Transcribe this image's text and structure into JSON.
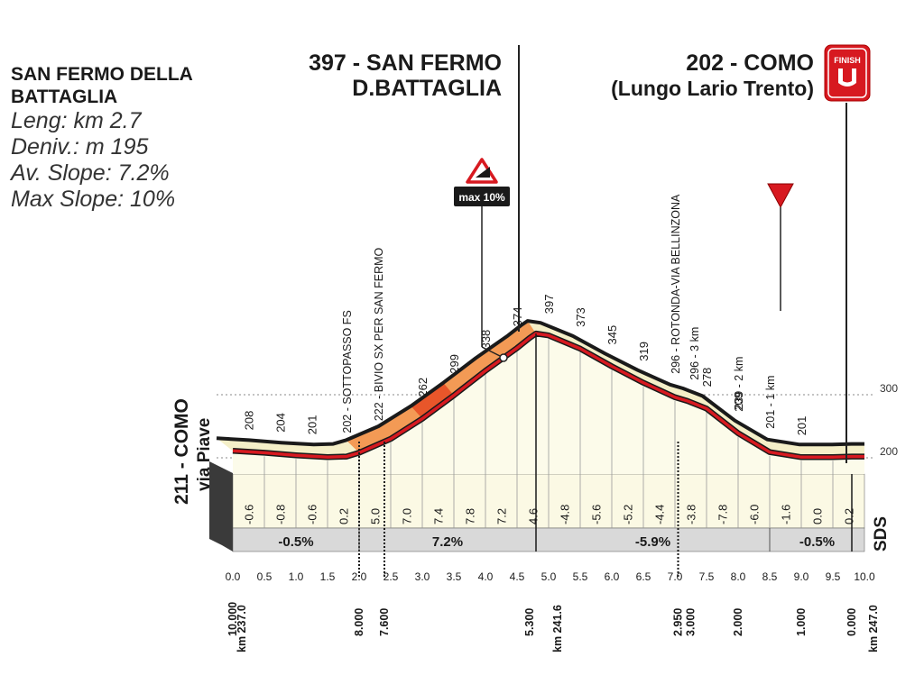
{
  "info": {
    "climb_name": "SAN FERMO DELLA BATTAGLIA",
    "length": "Leng: km 2.7",
    "elevation_gain": "Deniv.: m 195",
    "avg_slope": "Av. Slope: 7.2%",
    "max_slope": "Max Slope:  10%"
  },
  "summit": {
    "line1": "397 - SAN FERMO",
    "line2": "D.BATTAGLIA"
  },
  "finish": {
    "line1": "202 - COMO",
    "line2": "(Lungo Lario Trento)",
    "badge": "FINISH",
    "icon": "finish-flag-icon"
  },
  "start": {
    "line1": "211 - COMO",
    "line2": "via Piave"
  },
  "max_marker": {
    "label": "max 10%",
    "icon": "steep-slope-icon"
  },
  "last_km_marker": {
    "icon": "red-triangle-icon"
  },
  "logo": "SDS",
  "chart_data": {
    "type": "area",
    "x_unit": "km",
    "xlim": [
      0,
      10
    ],
    "ylim": [
      170,
      400
    ],
    "x_ticks": [
      "0.0",
      "0.5",
      "1.0",
      "1.5",
      "2.0",
      "2.5",
      "3.0",
      "3.5",
      "4.0",
      "4.5",
      "5.0",
      "5.5",
      "6.0",
      "6.5",
      "7.0",
      "7.5",
      "8.0",
      "8.5",
      "9.0",
      "9.5",
      "10.0"
    ],
    "y_reference": [
      {
        "value": 300,
        "label": "300"
      },
      {
        "value": 200,
        "label": "200"
      }
    ],
    "profile": [
      {
        "x": 0,
        "y": 211
      },
      {
        "x": 0.5,
        "y": 208
      },
      {
        "x": 1.0,
        "y": 204
      },
      {
        "x": 1.5,
        "y": 201
      },
      {
        "x": 1.8,
        "y": 202
      },
      {
        "x": 2.0,
        "y": 208
      },
      {
        "x": 2.5,
        "y": 230
      },
      {
        "x": 3.0,
        "y": 262
      },
      {
        "x": 3.5,
        "y": 299
      },
      {
        "x": 4.0,
        "y": 338
      },
      {
        "x": 4.5,
        "y": 374
      },
      {
        "x": 4.7,
        "y": 390
      },
      {
        "x": 4.8,
        "y": 397
      },
      {
        "x": 5.0,
        "y": 394
      },
      {
        "x": 5.5,
        "y": 373
      },
      {
        "x": 6.0,
        "y": 345
      },
      {
        "x": 6.5,
        "y": 319
      },
      {
        "x": 7.0,
        "y": 296
      },
      {
        "x": 7.2,
        "y": 290
      },
      {
        "x": 7.5,
        "y": 278
      },
      {
        "x": 8.0,
        "y": 239
      },
      {
        "x": 8.5,
        "y": 209
      },
      {
        "x": 9.0,
        "y": 201
      },
      {
        "x": 9.5,
        "y": 201
      },
      {
        "x": 9.8,
        "y": 202
      },
      {
        "x": 10.0,
        "y": 202
      }
    ],
    "steep_section": [
      3.3,
      4.8
    ],
    "altitude_labels": [
      {
        "x": 0.25,
        "label": "208"
      },
      {
        "x": 0.75,
        "label": "204"
      },
      {
        "x": 1.25,
        "label": "201"
      },
      {
        "x": 3.0,
        "label": "262"
      },
      {
        "x": 3.5,
        "label": "299"
      },
      {
        "x": 4.0,
        "label": "338"
      },
      {
        "x": 4.5,
        "label": "374"
      },
      {
        "x": 5.0,
        "label": "397"
      },
      {
        "x": 5.5,
        "label": "373"
      },
      {
        "x": 6.0,
        "label": "345"
      },
      {
        "x": 6.5,
        "label": "319"
      },
      {
        "x": 7.5,
        "label": "278"
      },
      {
        "x": 8.0,
        "label": "209"
      },
      {
        "x": 9.0,
        "label": "201"
      }
    ],
    "place_labels": [
      {
        "x": 1.8,
        "label": "202 - SOTTOPASSO FS"
      },
      {
        "x": 2.3,
        "label": "222 - BIVIO SX PER SAN FERMO"
      },
      {
        "x": 7.0,
        "label": "296 - ROTONDA-VIA BELLINZONA"
      },
      {
        "x": 7.3,
        "label": "296 - 3 km"
      },
      {
        "x": 8.0,
        "label": "239 - 2 km"
      },
      {
        "x": 8.5,
        "label": "201 - 1 km"
      }
    ],
    "segment_gradients": [
      "-0.6",
      "-0.8",
      "-0.6",
      "0.2",
      "5.0",
      "7.0",
      "7.4",
      "7.8",
      "7.2",
      "4.6",
      "-4.8",
      "-5.6",
      "-5.2",
      "-4.4",
      "-3.8",
      "-7.8",
      "-6.0",
      "-1.6",
      "0.0",
      "0.2"
    ],
    "section_averages": [
      {
        "from": 0,
        "to": 2.0,
        "label": "-0.5%"
      },
      {
        "from": 2.0,
        "to": 4.8,
        "label": "7.2%"
      },
      {
        "from": 4.8,
        "to": 8.5,
        "label": "-5.9%"
      },
      {
        "from": 8.5,
        "to": 10.0,
        "label": "-0.5%"
      }
    ],
    "km_to_go": [
      {
        "x": 0.0,
        "label": "10.000"
      },
      {
        "x": 2.0,
        "label": "8.000"
      },
      {
        "x": 2.4,
        "label": "7.600"
      },
      {
        "x": 4.7,
        "label": "5.300"
      },
      {
        "x": 7.05,
        "label": "2.950"
      },
      {
        "x": 7.25,
        "label": "3.000"
      },
      {
        "x": 8.0,
        "label": "2.000"
      },
      {
        "x": 9.0,
        "label": "1.000"
      },
      {
        "x": 9.8,
        "label": "0.000"
      }
    ],
    "km_race": [
      {
        "x": 0.0,
        "label": "km 237.0"
      },
      {
        "x": 5.0,
        "label": "km 241.6"
      },
      {
        "x": 10.0,
        "label": "km 247.0"
      }
    ]
  }
}
